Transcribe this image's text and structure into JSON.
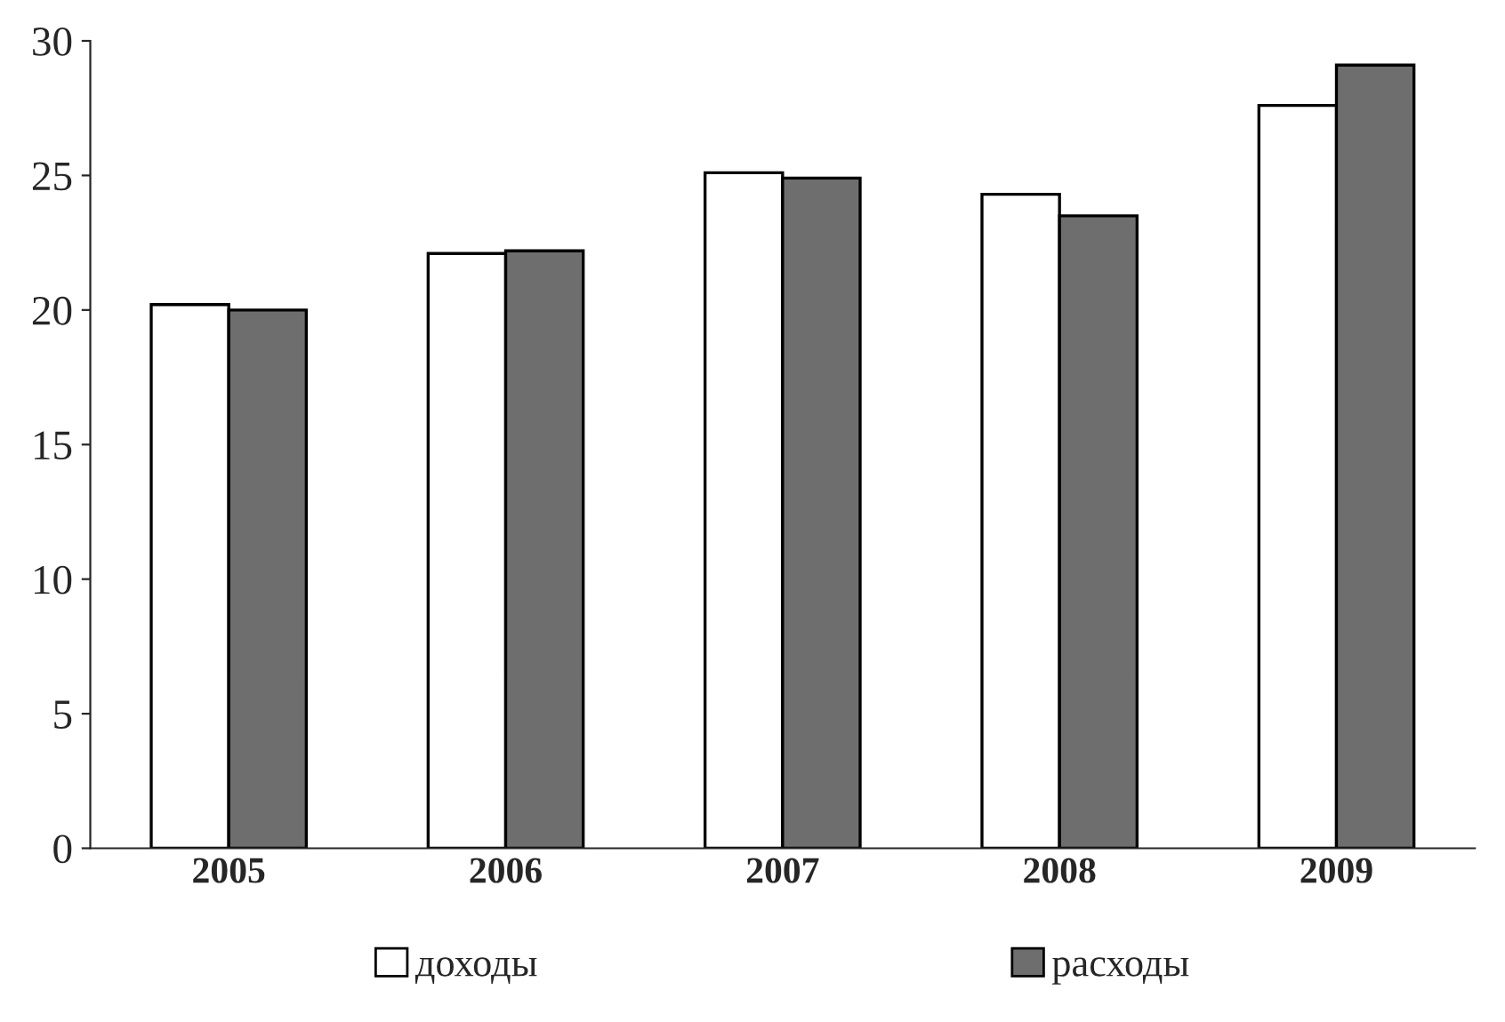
{
  "chart_data": {
    "type": "bar",
    "categories": [
      "2005",
      "2006",
      "2007",
      "2008",
      "2009"
    ],
    "series": [
      {
        "name": "доходы",
        "color": "#ffffff",
        "values": [
          20.2,
          22.1,
          25.1,
          24.3,
          27.6
        ]
      },
      {
        "name": "расходы",
        "color": "#6e6e6e",
        "values": [
          20.0,
          22.2,
          24.9,
          23.5,
          29.1
        ]
      }
    ],
    "ylim": [
      0,
      30
    ],
    "yticks": [
      0,
      5,
      10,
      15,
      20,
      25,
      30
    ],
    "grid": false,
    "legend": "bottom"
  }
}
